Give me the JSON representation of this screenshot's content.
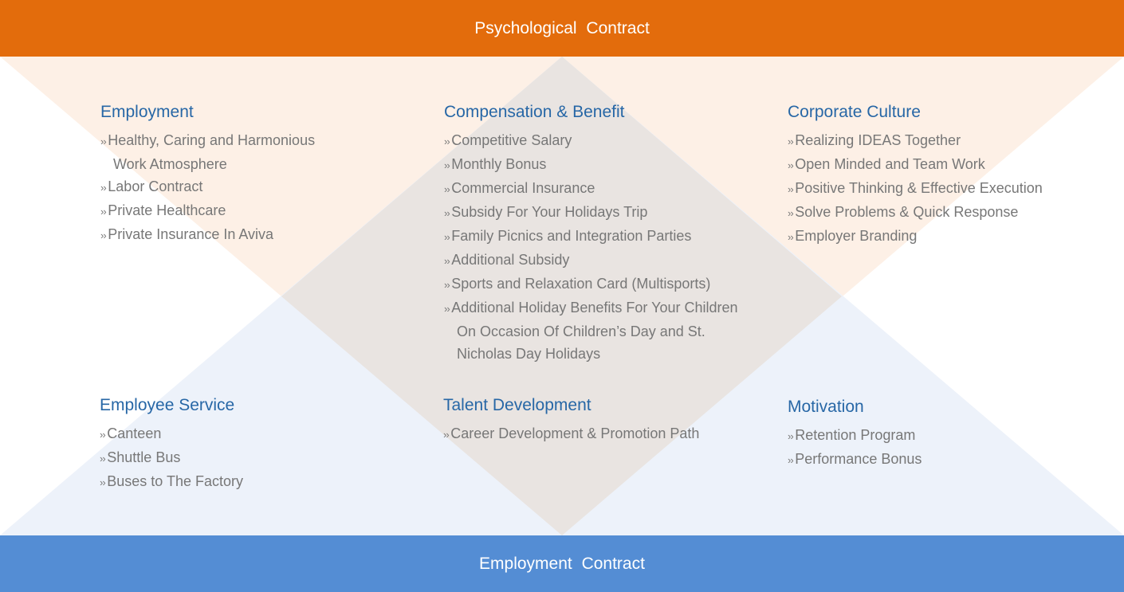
{
  "header": {
    "title": "Psychological  Contract"
  },
  "footer": {
    "title": "Employment  Contract"
  },
  "colors": {
    "orange": "#e36c0c",
    "blue": "#548dd4",
    "heading": "#2767a6",
    "text": "#777777"
  },
  "sections": [
    {
      "title": "Employment",
      "items": [
        "Healthy, Caring and Harmonious Work Atmosphere",
        "Labor Contract",
        "Private Healthcare",
        "Private Insurance In Aviva"
      ]
    },
    {
      "title": "Compensation & Benefit",
      "items": [
        "Competitive Salary",
        "Monthly Bonus",
        "Commercial Insurance",
        "Subsidy For Your Holidays Trip",
        "Family Picnics and Integration Parties",
        "Additional Subsidy",
        "Sports and Relaxation Card (Multisports)",
        "Additional Holiday Benefits For Your Children On Occasion Of Children’s Day and St. Nicholas Day Holidays"
      ]
    },
    {
      "title": "Corporate Culture",
      "items": [
        "Realizing IDEAS Together",
        "Open Minded and Team Work",
        "Positive Thinking & Effective Execution",
        "Solve Problems & Quick Response",
        "Employer Branding"
      ]
    },
    {
      "title": "Employee Service",
      "items": [
        "Canteen",
        "Shuttle Bus",
        "Buses to The Factory"
      ]
    },
    {
      "title": "Talent Development",
      "items": [
        "Career Development & Promotion Path"
      ]
    },
    {
      "title": "Motivation",
      "items": [
        "Retention Program",
        "Performance Bonus"
      ]
    }
  ]
}
